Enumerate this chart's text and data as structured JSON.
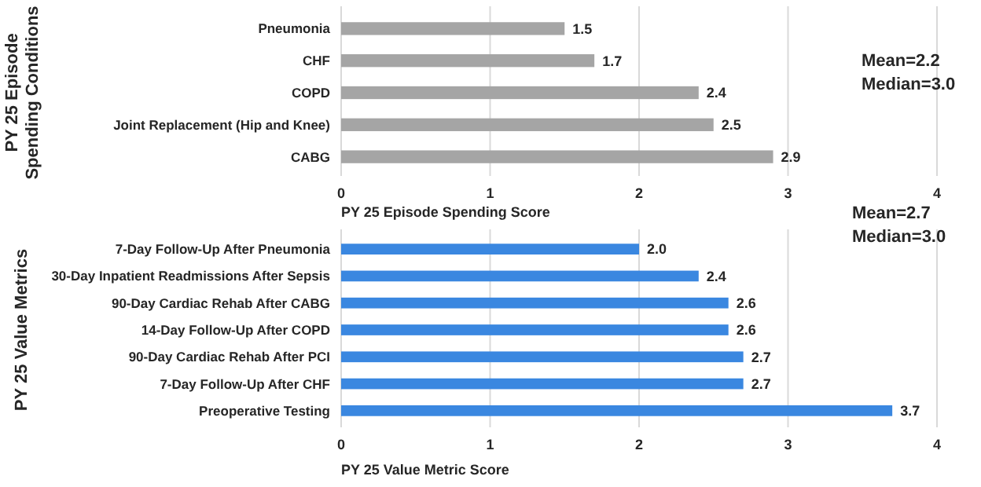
{
  "chart_data": [
    {
      "type": "bar",
      "orientation": "horizontal",
      "ylabel": "PY 25 Episode\nSpending Conditions",
      "xlabel": "PY 25 Episode Spending Score",
      "categories": [
        "Pneumonia",
        "CHF",
        "COPD",
        "Joint Replacement (Hip and Knee)",
        "CABG"
      ],
      "values": [
        1.5,
        1.7,
        2.4,
        2.5,
        2.9
      ],
      "value_labels": [
        "1.5",
        "1.7",
        "2.4",
        "2.5",
        "2.9"
      ],
      "color": "#a5a5a5",
      "xlim": [
        0,
        4
      ],
      "xticks": [
        0,
        1,
        2,
        3,
        4
      ],
      "grid": "x",
      "annotations": [
        "Mean=2.2",
        "Median=3.0"
      ]
    },
    {
      "type": "bar",
      "orientation": "horizontal",
      "ylabel": "PY 25 Value Metrics",
      "xlabel": "PY 25 Value Metric Score",
      "categories": [
        "7-Day Follow-Up After Pneumonia",
        "30-Day Inpatient Readmissions After Sepsis",
        "90-Day Cardiac Rehab After CABG",
        "14-Day Follow-Up After COPD",
        "90-Day Cardiac Rehab After PCI",
        "7-Day Follow-Up After CHF",
        "Preoperative Testing"
      ],
      "values": [
        2.0,
        2.4,
        2.6,
        2.6,
        2.7,
        2.7,
        3.7
      ],
      "value_labels": [
        "2.0",
        "2.4",
        "2.6",
        "2.6",
        "2.7",
        "2.7",
        "3.7"
      ],
      "color": "#3a87e0",
      "xlim": [
        0,
        4
      ],
      "xticks": [
        0,
        1,
        2,
        3,
        4
      ],
      "grid": "x",
      "annotations": [
        "Mean=2.7",
        "Median=3.0"
      ]
    }
  ]
}
